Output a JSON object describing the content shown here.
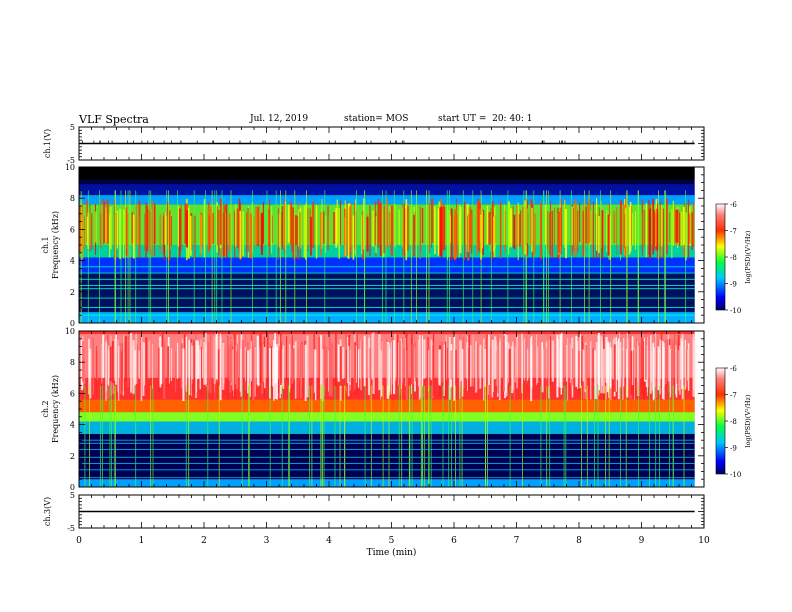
{
  "header": {
    "title": "VLF Spectra",
    "date": "Jul. 12, 2019",
    "station": "station= MOS",
    "start": "start UT =  20: 40: 1"
  },
  "chart_data": [
    {
      "type": "line",
      "panel": "ch1-voltage",
      "ylabel": "ch.1(V)",
      "ylim": [
        -5,
        5
      ],
      "yticks": [
        "5",
        "-5"
      ],
      "xlim": [
        0,
        10
      ],
      "series": [
        {
          "x": [
            0,
            9.85
          ],
          "y": [
            0,
            0
          ]
        }
      ]
    },
    {
      "type": "heatmap",
      "panel": "ch1-spectrogram",
      "ylabel_line1": "ch.1",
      "ylabel_line2": "Frequency (kHz)",
      "ylim": [
        0,
        10
      ],
      "yticks": [
        "0",
        "2",
        "4",
        "6",
        "8",
        "10"
      ],
      "xlim": [
        0,
        10
      ],
      "colorbar": {
        "label": "log(PSD)(V²/Hz)",
        "range": [
          -10,
          -6
        ],
        "ticks": [
          "-6",
          "-7",
          "-8",
          "-9",
          "-10"
        ]
      }
    },
    {
      "type": "heatmap",
      "panel": "ch2-spectrogram",
      "ylabel_line1": "ch.2",
      "ylabel_line2": "Frequency (kHz)",
      "ylim": [
        0,
        10
      ],
      "yticks": [
        "0",
        "2",
        "4",
        "6",
        "8",
        "10"
      ],
      "xlim": [
        0,
        10
      ],
      "colorbar": {
        "label": "log(PSD)(V²/Hz)",
        "range": [
          -10,
          -6
        ],
        "ticks": [
          "-6",
          "-7",
          "-8",
          "-9",
          "-10"
        ]
      }
    },
    {
      "type": "line",
      "panel": "ch3-voltage",
      "ylabel": "ch.3(V)",
      "ylim": [
        -5,
        5
      ],
      "yticks": [
        "5",
        "-5"
      ],
      "xlim": [
        0,
        10
      ],
      "xlabel": "Time (min)",
      "xticks": [
        "0",
        "1",
        "2",
        "3",
        "4",
        "5",
        "6",
        "7",
        "8",
        "9",
        "10"
      ],
      "series": [
        {
          "x": [
            0,
            9.85
          ],
          "y": [
            0,
            0
          ]
        }
      ]
    }
  ]
}
